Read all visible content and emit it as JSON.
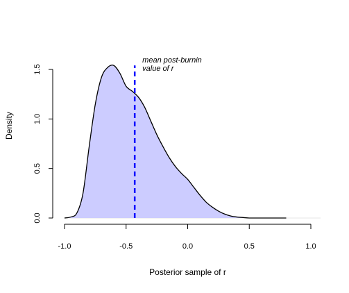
{
  "chart_data": {
    "type": "area",
    "xlabel": "Posterior sample of r",
    "ylabel": "Density",
    "xlim": [
      -1.1,
      1.05
    ],
    "ylim": [
      -0.05,
      1.6
    ],
    "x_ticks": [
      -1.0,
      -0.5,
      0.0,
      0.5,
      1.0
    ],
    "x_tick_labels": [
      "-1.0",
      "-0.5",
      "0.0",
      "0.5",
      "1.0"
    ],
    "y_ticks": [
      0.0,
      0.5,
      1.0,
      1.5
    ],
    "y_tick_labels": [
      "0.0",
      "0.5",
      "1.0",
      "1.5"
    ],
    "fill_color": "#ccccff",
    "line_color": "#000000",
    "mean_line": {
      "x": -0.43,
      "color": "#0000ff",
      "style": "dashed",
      "label_line1": "mean post-burnin",
      "label_line2": "value of r"
    },
    "density": {
      "x": [
        -1.0,
        -0.95,
        -0.9,
        -0.85,
        -0.8,
        -0.75,
        -0.7,
        -0.65,
        -0.6,
        -0.55,
        -0.5,
        -0.45,
        -0.4,
        -0.35,
        -0.3,
        -0.25,
        -0.2,
        -0.15,
        -0.1,
        -0.05,
        0.0,
        0.05,
        0.1,
        0.15,
        0.2,
        0.25,
        0.3,
        0.35,
        0.4,
        0.45,
        0.5,
        0.6,
        0.7,
        0.8
      ],
      "y": [
        0.0,
        0.01,
        0.05,
        0.25,
        0.72,
        1.15,
        1.42,
        1.52,
        1.54,
        1.46,
        1.33,
        1.28,
        1.22,
        1.12,
        0.98,
        0.84,
        0.72,
        0.61,
        0.52,
        0.45,
        0.39,
        0.31,
        0.23,
        0.16,
        0.11,
        0.07,
        0.04,
        0.02,
        0.01,
        0.005,
        0.0,
        0.0,
        0.0,
        0.0
      ]
    }
  }
}
